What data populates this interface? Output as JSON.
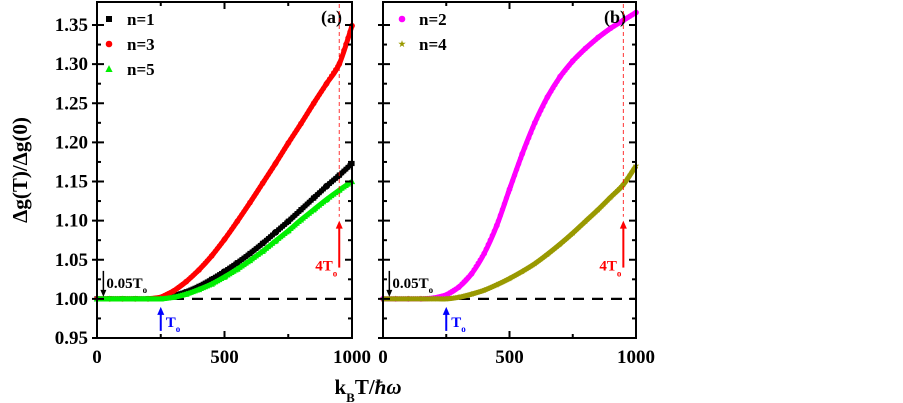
{
  "chart_data": [
    {
      "type": "scatter",
      "panel_label": "(a)",
      "xlabel": "k_B T/ħω",
      "ylabel": "Δg(T)/Δg(0)",
      "xlim": [
        0,
        1000
      ],
      "ylim": [
        0.95,
        1.37
      ],
      "x_ticks": [
        "0",
        "500",
        "1000"
      ],
      "y_ticks": [
        "0.95",
        "1.00",
        "1.05",
        "1.10",
        "1.15",
        "1.20",
        "1.25",
        "1.30",
        "1.35"
      ],
      "legend_position": "top-left",
      "reference_line": {
        "y": 1.0,
        "style": "dashed",
        "color": "#000000"
      },
      "annotations": [
        {
          "text": "0.05T",
          "sub": "o",
          "x": 25,
          "color": "#000000",
          "arrow": "down"
        },
        {
          "text": "T",
          "sub": "o",
          "x": 250,
          "color": "#0000ff",
          "arrow": "up"
        },
        {
          "text": "4T",
          "sub": "o",
          "x": 950,
          "color": "#ff0000",
          "arrow": "up",
          "vline": true
        }
      ],
      "x": [
        0,
        50,
        100,
        150,
        200,
        250,
        300,
        350,
        400,
        450,
        500,
        550,
        600,
        650,
        700,
        750,
        800,
        850,
        900,
        950,
        1000
      ],
      "series": [
        {
          "name": "n=1",
          "marker": "square",
          "color": "#000000",
          "values": [
            1.0,
            1.0,
            1.0,
            1.0,
            1.0,
            1.001,
            1.004,
            1.009,
            1.016,
            1.025,
            1.035,
            1.046,
            1.058,
            1.071,
            1.085,
            1.099,
            1.114,
            1.129,
            1.144,
            1.158,
            1.173
          ]
        },
        {
          "name": "n=3",
          "marker": "circle",
          "color": "#ff0000",
          "values": [
            1.0,
            1.0,
            1.0,
            1.0,
            1.0,
            1.002,
            1.01,
            1.022,
            1.037,
            1.055,
            1.076,
            1.099,
            1.123,
            1.148,
            1.173,
            1.199,
            1.224,
            1.25,
            1.275,
            1.3,
            1.349
          ]
        },
        {
          "name": "n=5",
          "marker": "triangle",
          "color": "#00ee00",
          "values": [
            1.0,
            1.0,
            1.0,
            1.0,
            1.0,
            1.0,
            1.002,
            1.006,
            1.012,
            1.019,
            1.028,
            1.038,
            1.049,
            1.061,
            1.074,
            1.087,
            1.101,
            1.114,
            1.127,
            1.139,
            1.15
          ]
        }
      ]
    },
    {
      "type": "scatter",
      "panel_label": "(b)",
      "xlabel": "k_B T/ħω",
      "ylabel": "",
      "xlim": [
        0,
        1000
      ],
      "ylim": [
        0.95,
        1.37
      ],
      "x_ticks": [
        "0",
        "500",
        "1000"
      ],
      "y_ticks": [],
      "legend_position": "top-left",
      "reference_line": {
        "y": 1.0,
        "style": "dashed",
        "color": "#000000"
      },
      "annotations": [
        {
          "text": "0.05T",
          "sub": "o",
          "x": 25,
          "color": "#000000",
          "arrow": "down"
        },
        {
          "text": "T",
          "sub": "o",
          "x": 250,
          "color": "#0000ff",
          "arrow": "up"
        },
        {
          "text": "4T",
          "sub": "o",
          "x": 950,
          "color": "#ff0000",
          "arrow": "up",
          "vline": true
        }
      ],
      "x": [
        0,
        50,
        100,
        150,
        200,
        250,
        300,
        350,
        400,
        450,
        500,
        550,
        600,
        650,
        700,
        750,
        800,
        850,
        900,
        950,
        1000
      ],
      "series": [
        {
          "name": "n=2",
          "marker": "circle",
          "color": "#ff00ff",
          "values": [
            1.0,
            1.0,
            1.0,
            1.0,
            1.001,
            1.005,
            1.015,
            1.032,
            1.058,
            1.094,
            1.14,
            1.185,
            1.225,
            1.258,
            1.284,
            1.304,
            1.32,
            1.334,
            1.346,
            1.356,
            1.366
          ]
        },
        {
          "name": "n=4",
          "marker": "star",
          "color": "#999900",
          "values": [
            1.0,
            1.0,
            1.0,
            1.0,
            1.0,
            1.0,
            1.002,
            1.006,
            1.011,
            1.018,
            1.026,
            1.035,
            1.045,
            1.057,
            1.07,
            1.084,
            1.099,
            1.114,
            1.13,
            1.146,
            1.17
          ]
        }
      ]
    }
  ]
}
